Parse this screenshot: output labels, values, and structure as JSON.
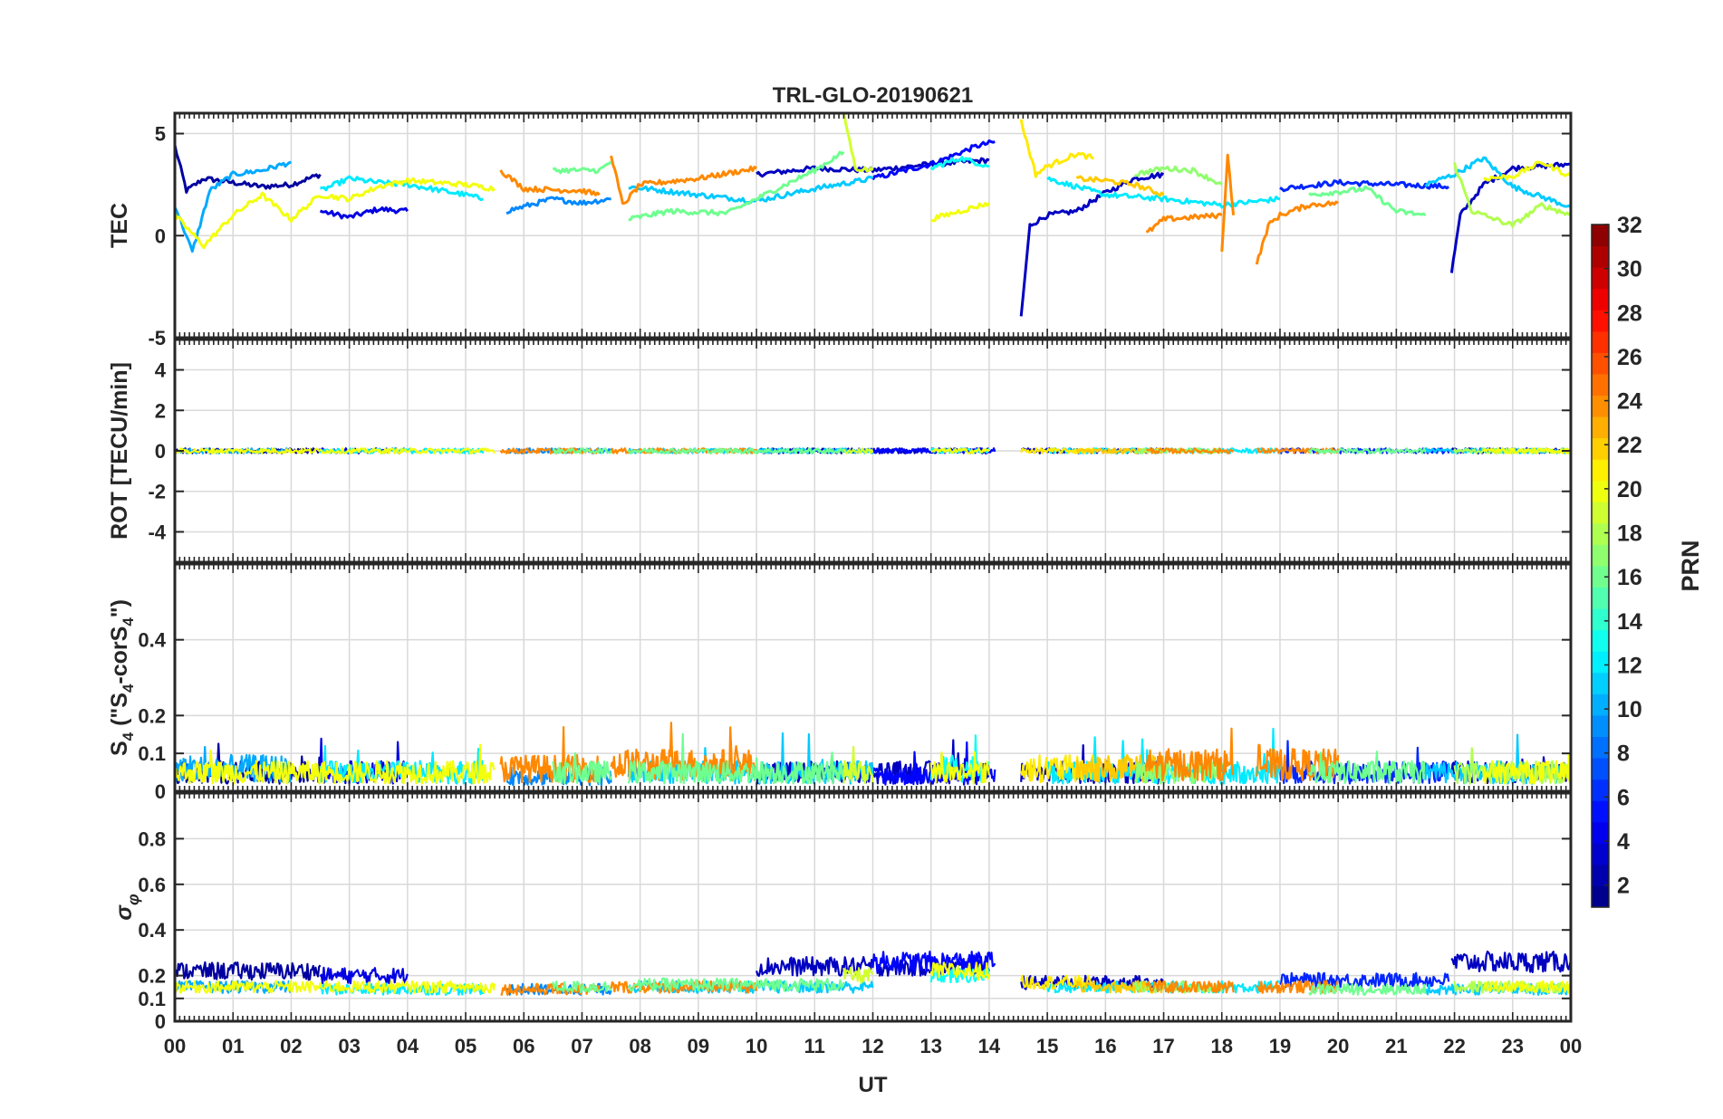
{
  "title": "TRL-GLO-20190621",
  "x_axis": {
    "label": "UT",
    "ticks": [
      "00",
      "01",
      "02",
      "03",
      "04",
      "05",
      "06",
      "07",
      "08",
      "09",
      "10",
      "11",
      "12",
      "13",
      "14",
      "15",
      "16",
      "17",
      "18",
      "19",
      "20",
      "21",
      "22",
      "23",
      "00"
    ]
  },
  "panels": [
    {
      "id": "tec",
      "ylabel": "TEC",
      "ylim": [
        -5,
        6
      ],
      "ticks": [
        {
          "v": 5,
          "t": "5"
        },
        {
          "v": 0,
          "t": "0"
        },
        {
          "v": -5,
          "t": "-5"
        }
      ]
    },
    {
      "id": "rot",
      "ylabel": "ROT [TECU/min]",
      "ylim": [
        -5.5,
        5.5
      ],
      "ticks": [
        {
          "v": 4,
          "t": "4"
        },
        {
          "v": 2,
          "t": "2"
        },
        {
          "v": 0,
          "t": "0"
        },
        {
          "v": -2,
          "t": "-2"
        },
        {
          "v": -4,
          "t": "-4"
        }
      ]
    },
    {
      "id": "s4",
      "ylabel_main": "S",
      "ylabel_sub1": "4",
      "ylabel_mid": " (\"S",
      "ylabel_sub2": "4",
      "ylabel_tail1": "-corS",
      "ylabel_sub3": "4",
      "ylabel_tail2": "\")",
      "ylim": [
        0,
        0.6
      ],
      "ticks": [
        {
          "v": 0.4,
          "t": "0.4"
        },
        {
          "v": 0.2,
          "t": "0.2"
        },
        {
          "v": 0.1,
          "t": "0.1"
        },
        {
          "v": 0,
          "t": "0"
        }
      ]
    },
    {
      "id": "sigma",
      "ylabel_main": "σ",
      "ylabel_sub": "φ",
      "ylim": [
        0,
        1
      ],
      "ticks": [
        {
          "v": 0.8,
          "t": "0.8"
        },
        {
          "v": 0.6,
          "t": "0.6"
        },
        {
          "v": 0.4,
          "t": "0.4"
        },
        {
          "v": 0.2,
          "t": "0.2"
        },
        {
          "v": 0.1,
          "t": "0.1"
        },
        {
          "v": 0,
          "t": "0"
        }
      ]
    }
  ],
  "colorbar": {
    "label": "PRN",
    "range": [
      1,
      32
    ],
    "ticks": [
      "32",
      "30",
      "28",
      "26",
      "24",
      "22",
      "20",
      "18",
      "16",
      "14",
      "12",
      "10",
      "8",
      "6",
      "4",
      "2"
    ],
    "colormap": "jet"
  },
  "chart_data": {
    "type": "line",
    "title": "TRL-GLO-20190621",
    "xlabel": "UT",
    "xlim": [
      0,
      24
    ],
    "note_series": "Each colored trace is one GLONASS satellite (PRN 1-32), colored by the jet colormap.",
    "series": [
      {
        "prn": 2,
        "tec": [
          [
            0.0,
            4.4
          ],
          [
            0.2,
            2.2
          ],
          [
            0.5,
            2.8
          ],
          [
            1.0,
            2.6
          ],
          [
            1.5,
            2.4
          ],
          [
            2.0,
            2.5
          ],
          [
            2.5,
            3.0
          ]
        ],
        "sigma_level": 0.22,
        "s4_level": 0.05
      },
      {
        "prn": 4,
        "tec": [
          [
            2.5,
            1.2
          ],
          [
            3.0,
            0.9
          ],
          [
            3.5,
            1.3
          ],
          [
            4.0,
            1.2
          ]
        ],
        "sigma_level": 0.2,
        "s4_level": 0.05
      },
      {
        "prn": 3,
        "tec": [
          [
            10.0,
            3.0
          ],
          [
            11.0,
            3.3
          ],
          [
            12.0,
            3.2
          ],
          [
            13.0,
            3.5
          ],
          [
            14.0,
            3.7
          ]
        ],
        "sigma_level": 0.24,
        "s4_level": 0.05
      },
      {
        "prn": 5,
        "tec": [
          [
            12.0,
            2.8
          ],
          [
            13.0,
            3.5
          ],
          [
            13.8,
            4.4
          ],
          [
            14.1,
            4.6
          ]
        ],
        "sigma_level": 0.26,
        "s4_level": 0.04
      },
      {
        "prn": 3,
        "tec": [
          [
            14.55,
            -4.0
          ],
          [
            14.7,
            0.5
          ],
          [
            15.0,
            1.0
          ],
          [
            15.5,
            1.2
          ],
          [
            16.0,
            2.1
          ],
          [
            16.5,
            2.8
          ],
          [
            17.0,
            3.0
          ]
        ],
        "sigma_level": 0.17,
        "s4_level": 0.05
      },
      {
        "prn": 6,
        "tec": [
          [
            19.0,
            2.3
          ],
          [
            20.0,
            2.6
          ],
          [
            21.0,
            2.5
          ],
          [
            21.9,
            2.4
          ]
        ],
        "sigma_level": 0.18,
        "s4_level": 0.05
      },
      {
        "prn": 3,
        "tec": [
          [
            21.95,
            -1.8
          ],
          [
            22.1,
            1.0
          ],
          [
            22.5,
            2.5
          ],
          [
            23.0,
            3.3
          ],
          [
            24.0,
            3.5
          ]
        ],
        "sigma_level": 0.26,
        "s4_level": 0.05
      },
      {
        "prn": 10,
        "tec": [
          [
            0.0,
            1.5
          ],
          [
            0.3,
            -0.8
          ],
          [
            0.6,
            2.2
          ],
          [
            1.0,
            3.0
          ],
          [
            1.5,
            3.2
          ],
          [
            2.0,
            3.6
          ]
        ],
        "sigma_level": 0.15,
        "s4_level": 0.06
      },
      {
        "prn": 12,
        "tec": [
          [
            2.5,
            2.2
          ],
          [
            3.0,
            2.8
          ],
          [
            3.5,
            2.6
          ],
          [
            4.0,
            2.5
          ],
          [
            5.0,
            2.0
          ],
          [
            5.3,
            1.8
          ]
        ],
        "sigma_level": 0.14,
        "s4_level": 0.05
      },
      {
        "prn": 9,
        "tec": [
          [
            5.7,
            1.2
          ],
          [
            6.5,
            1.8
          ],
          [
            7.0,
            1.6
          ],
          [
            7.5,
            1.8
          ]
        ],
        "sigma_level": 0.14,
        "s4_level": 0.04
      },
      {
        "prn": 11,
        "tec": [
          [
            7.8,
            2.4
          ],
          [
            9.0,
            2.0
          ],
          [
            10.0,
            1.7
          ],
          [
            11.0,
            2.3
          ],
          [
            12.0,
            2.8
          ]
        ],
        "sigma_level": 0.15,
        "s4_level": 0.05
      },
      {
        "prn": 13,
        "tec": [
          [
            13.0,
            3.3
          ],
          [
            13.5,
            3.8
          ],
          [
            14.0,
            3.4
          ]
        ],
        "sigma_level": 0.2,
        "s4_level": 0.06
      },
      {
        "prn": 12,
        "tec": [
          [
            15.0,
            2.8
          ],
          [
            16.0,
            2.0
          ],
          [
            17.0,
            1.8
          ],
          [
            18.0,
            1.5
          ],
          [
            19.0,
            1.8
          ]
        ],
        "sigma_level": 0.15,
        "s4_level": 0.05
      },
      {
        "prn": 11,
        "tec": [
          [
            21.5,
            2.5
          ],
          [
            22.0,
            3.0
          ],
          [
            22.5,
            3.8
          ],
          [
            23.0,
            2.4
          ],
          [
            24.0,
            1.4
          ]
        ],
        "sigma_level": 0.14,
        "s4_level": 0.05
      },
      {
        "prn": 20,
        "tec": [
          [
            0.0,
            1.0
          ],
          [
            0.5,
            -0.5
          ],
          [
            1.0,
            1.0
          ],
          [
            1.5,
            2.0
          ],
          [
            2.0,
            0.8
          ],
          [
            2.5,
            2.0
          ],
          [
            3.0,
            1.8
          ],
          [
            3.5,
            2.4
          ],
          [
            4.0,
            2.7
          ],
          [
            5.0,
            2.5
          ],
          [
            5.5,
            2.3
          ]
        ],
        "sigma_level": 0.15,
        "s4_level": 0.05
      },
      {
        "prn": 24,
        "tec": [
          [
            5.6,
            3.2
          ],
          [
            6.0,
            2.3
          ],
          [
            7.0,
            2.2
          ],
          [
            7.3,
            2.0
          ]
        ],
        "sigma_level": 0.14,
        "s4_level": 0.06
      },
      {
        "prn": 24,
        "tec": [
          [
            7.5,
            4.0
          ],
          [
            7.7,
            1.5
          ],
          [
            8.0,
            2.5
          ],
          [
            9.0,
            2.8
          ],
          [
            10.0,
            3.3
          ]
        ],
        "sigma_level": 0.15,
        "s4_level": 0.07
      },
      {
        "prn": 16,
        "tec": [
          [
            6.5,
            3.2
          ],
          [
            7.3,
            3.2
          ],
          [
            7.5,
            3.6
          ]
        ],
        "sigma_level": 0.15,
        "s4_level": 0.05
      },
      {
        "prn": 16,
        "tec": [
          [
            7.8,
            0.8
          ],
          [
            8.5,
            1.2
          ],
          [
            9.5,
            1.1
          ],
          [
            10.0,
            1.8
          ],
          [
            11.0,
            3.2
          ],
          [
            11.5,
            4.1
          ]
        ],
        "sigma_level": 0.16,
        "s4_level": 0.05
      },
      {
        "prn": 19,
        "tec": [
          [
            11.5,
            6.0
          ],
          [
            11.7,
            3.3
          ],
          [
            12.0,
            3.2
          ]
        ],
        "sigma_level": 0.2,
        "s4_level": 0.05
      },
      {
        "prn": 20,
        "tec": [
          [
            13.0,
            0.8
          ],
          [
            13.5,
            1.2
          ],
          [
            14.0,
            1.6
          ]
        ],
        "sigma_level": 0.22,
        "s4_level": 0.05
      },
      {
        "prn": 21,
        "tec": [
          [
            14.55,
            5.6
          ],
          [
            14.8,
            3.0
          ],
          [
            15.0,
            3.4
          ],
          [
            15.5,
            4.0
          ],
          [
            15.8,
            3.8
          ]
        ],
        "sigma_level": 0.17,
        "s4_level": 0.06
      },
      {
        "prn": 22,
        "tec": [
          [
            15.5,
            2.8
          ],
          [
            16.0,
            2.7
          ],
          [
            16.5,
            2.5
          ],
          [
            17.0,
            2.0
          ]
        ],
        "sigma_level": 0.15,
        "s4_level": 0.06
      },
      {
        "prn": 17,
        "tec": [
          [
            16.5,
            3.0
          ],
          [
            17.0,
            3.3
          ],
          [
            17.5,
            3.2
          ],
          [
            18.0,
            2.5
          ]
        ],
        "sigma_level": 0.15,
        "s4_level": 0.05
      },
      {
        "prn": 24,
        "tec": [
          [
            16.7,
            0.1
          ],
          [
            17.0,
            0.8
          ],
          [
            17.5,
            0.9
          ],
          [
            18.0,
            1.0
          ]
        ],
        "sigma_level": 0.15,
        "s4_level": 0.07
      },
      {
        "prn": 24,
        "tec": [
          [
            18.0,
            -0.8
          ],
          [
            18.1,
            4.0
          ],
          [
            18.2,
            1.0
          ]
        ],
        "sigma_level": 0.15,
        "s4_level": 0.07
      },
      {
        "prn": 24,
        "tec": [
          [
            18.6,
            -1.4
          ],
          [
            18.8,
            0.5
          ],
          [
            19.0,
            1.0
          ],
          [
            19.5,
            1.5
          ],
          [
            20.0,
            1.6
          ]
        ],
        "sigma_level": 0.15,
        "s4_level": 0.07
      },
      {
        "prn": 16,
        "tec": [
          [
            19.5,
            2.0
          ],
          [
            20.5,
            2.3
          ],
          [
            21.0,
            1.2
          ],
          [
            21.5,
            1.0
          ]
        ],
        "sigma_level": 0.14,
        "s4_level": 0.05
      },
      {
        "prn": 18,
        "tec": [
          [
            22.0,
            3.5
          ],
          [
            22.3,
            1.2
          ],
          [
            23.0,
            0.5
          ],
          [
            23.5,
            1.5
          ],
          [
            24.0,
            1.0
          ]
        ],
        "sigma_level": 0.15,
        "s4_level": 0.05
      },
      {
        "prn": 20,
        "tec": [
          [
            22.5,
            2.8
          ],
          [
            23.0,
            2.9
          ],
          [
            23.5,
            3.6
          ],
          [
            24.0,
            2.9
          ]
        ],
        "sigma_level": 0.15,
        "s4_level": 0.05
      }
    ]
  }
}
